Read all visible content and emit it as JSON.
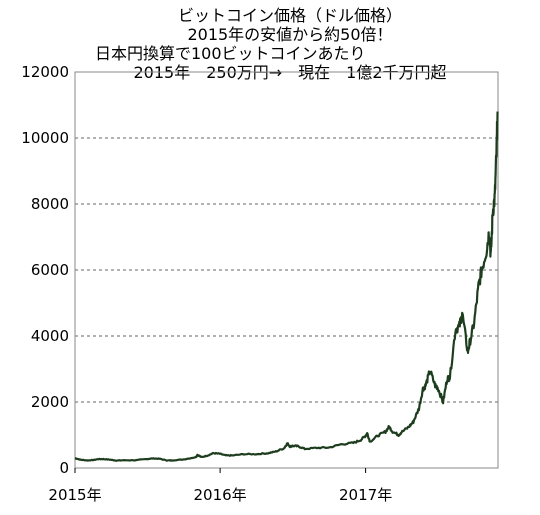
{
  "chart_data": {
    "type": "line",
    "title_lines": [
      "ビットコイン価格（ドル価格）",
      "2015年の安値から約50倍！",
      "日本円換算で100ビットコインあたり",
      "2015年　250万円→　現在　1億2千万円超"
    ],
    "xlabel": "",
    "ylabel": "",
    "ylim": [
      0,
      12000
    ],
    "yticks": [
      0,
      2000,
      4000,
      6000,
      8000,
      10000,
      12000
    ],
    "ytick_labels": [
      "0",
      "2000",
      "4000",
      "6000",
      "8000",
      "10000",
      "12000"
    ],
    "xlim": [
      "2015-01-01",
      "2017-11-30"
    ],
    "xticks": [
      "2015-01-01",
      "2016-01-01",
      "2017-01-01"
    ],
    "xtick_labels": [
      "2015年",
      "2016年",
      "2017年"
    ],
    "grid": "horizontal dashed",
    "legend": "none",
    "line_color": "#1e3d1e",
    "series": [
      {
        "x": [
          "2015-01-01",
          "2015-01-15",
          "2015-02-01",
          "2015-02-15",
          "2015-03-01",
          "2015-03-15",
          "2015-04-01",
          "2015-04-15",
          "2015-05-01",
          "2015-06-01",
          "2015-07-01",
          "2015-07-15",
          "2015-08-01",
          "2015-08-20",
          "2015-09-01",
          "2015-10-01",
          "2015-11-01",
          "2015-11-05",
          "2015-11-15",
          "2015-12-01",
          "2015-12-15",
          "2016-01-01",
          "2016-01-15",
          "2016-02-01",
          "2016-03-01",
          "2016-04-01",
          "2016-05-01",
          "2016-05-20",
          "2016-06-10",
          "2016-06-18",
          "2016-06-25",
          "2016-07-01",
          "2016-07-15",
          "2016-08-01",
          "2016-09-01",
          "2016-10-01",
          "2016-11-01",
          "2016-12-01",
          "2016-12-20",
          "2017-01-01",
          "2017-01-05",
          "2017-01-12",
          "2017-02-01",
          "2017-02-20",
          "2017-03-01",
          "2017-03-10",
          "2017-03-25",
          "2017-04-01",
          "2017-04-20",
          "2017-05-01",
          "2017-05-15",
          "2017-05-25",
          "2017-06-01",
          "2017-06-12",
          "2017-06-25",
          "2017-07-01",
          "2017-07-15",
          "2017-07-25",
          "2017-08-01",
          "2017-08-15",
          "2017-08-25",
          "2017-09-01",
          "2017-09-15",
          "2017-09-20",
          "2017-10-01",
          "2017-10-12",
          "2017-10-20",
          "2017-11-01",
          "2017-11-08",
          "2017-11-12",
          "2017-11-17",
          "2017-11-22",
          "2017-11-26",
          "2017-11-29"
        ],
        "values": [
          300,
          250,
          230,
          240,
          270,
          270,
          250,
          225,
          235,
          235,
          270,
          290,
          280,
          230,
          230,
          260,
          330,
          400,
          330,
          380,
          450,
          430,
          380,
          380,
          420,
          420,
          450,
          500,
          600,
          750,
          650,
          670,
          660,
          580,
          610,
          620,
          720,
          760,
          850,
          980,
          1050,
          800,
          980,
          1100,
          1250,
          1100,
          1000,
          1080,
          1250,
          1400,
          1800,
          2400,
          2500,
          2950,
          2500,
          2450,
          2000,
          2700,
          2750,
          4200,
          4300,
          4700,
          3500,
          3800,
          4400,
          5500,
          6000,
          6600,
          7200,
          6400,
          7800,
          8200,
          9500,
          10800
        ]
      }
    ]
  }
}
